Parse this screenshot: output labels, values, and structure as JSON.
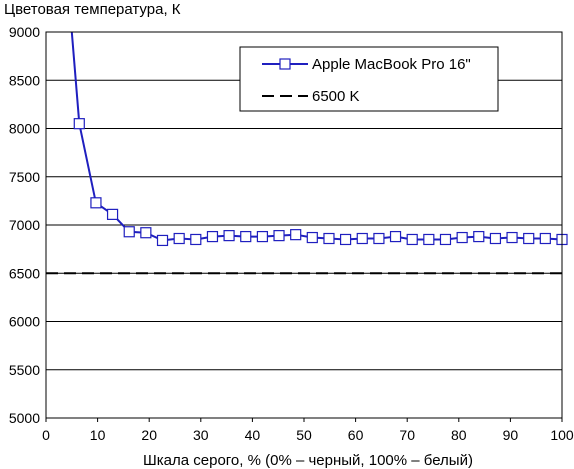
{
  "chart_data": {
    "type": "line",
    "ylabel": "Цветовая температура, К",
    "xlabel": "Шкала серого, % (0% – черный, 100% – белый)",
    "xlim": [
      0,
      100
    ],
    "ylim": [
      5000,
      9000
    ],
    "xticks": [
      "0",
      "10",
      "20",
      "30",
      "40",
      "50",
      "60",
      "70",
      "80",
      "90",
      "100"
    ],
    "yticks": [
      "5000",
      "5500",
      "6000",
      "6500",
      "7000",
      "7500",
      "8000",
      "8500",
      "9000"
    ],
    "grid": "horizontal",
    "legend_position": "top-right",
    "series": [
      {
        "name": "Apple MacBook Pro 16\"",
        "color": "#1f1fbf",
        "marker": "square",
        "x": [
          5,
          6.45,
          9.68,
          12.9,
          16.13,
          19.35,
          22.58,
          25.81,
          29.03,
          32.26,
          35.48,
          38.71,
          41.94,
          45.16,
          48.39,
          51.61,
          54.84,
          58.06,
          61.29,
          64.52,
          67.74,
          70.97,
          74.19,
          77.42,
          80.65,
          83.87,
          87.1,
          90.32,
          93.55,
          96.77,
          100
        ],
        "y": [
          9000,
          8050,
          7230,
          7110,
          6930,
          6920,
          6840,
          6860,
          6850,
          6880,
          6890,
          6880,
          6880,
          6890,
          6900,
          6870,
          6860,
          6850,
          6860,
          6860,
          6880,
          6850,
          6850,
          6850,
          6870,
          6880,
          6860,
          6870,
          6860,
          6860,
          6850
        ],
        "marker_from_index": 1
      },
      {
        "name": "6500 K",
        "color": "#000000",
        "dash": "dashed",
        "x": [
          0,
          100
        ],
        "y": [
          6500,
          6500
        ]
      }
    ]
  }
}
